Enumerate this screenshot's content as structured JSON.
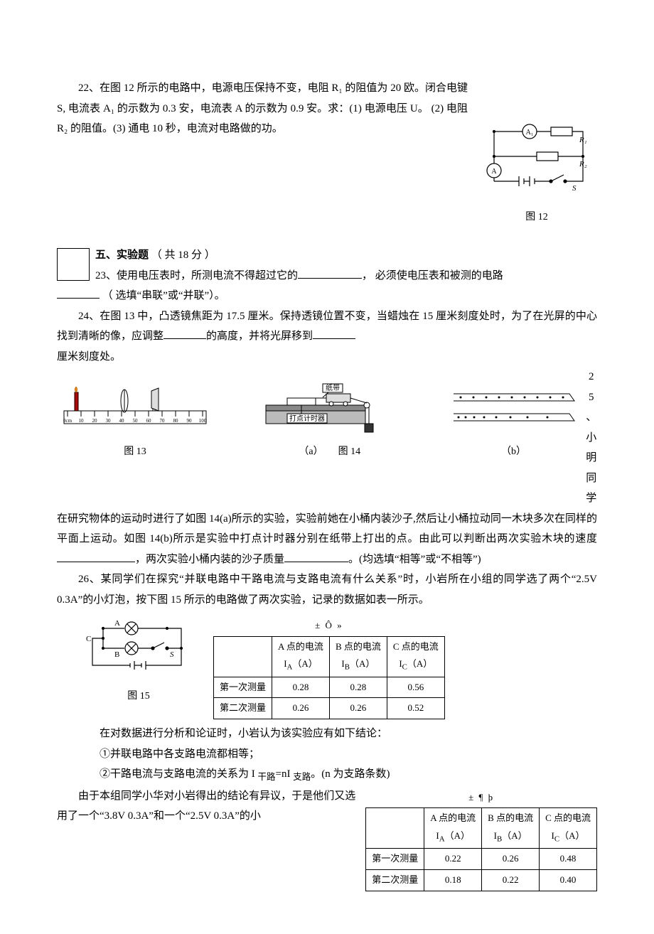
{
  "q22": {
    "text": "22、在图 12 所示的电路中，电源电压保持不变，电阻 R₁ 的阻值为 20 欧。闭合电键 S, 电流表 A₁ 的示数为 0.3 安，电流表 A 的示数为 0.9 安。求：(1) 电源电压 U。  (2) 电阻 R₂ 的阻值。(3) 通电 10 秒，电流对电路做的功。",
    "fig_caption": "图 12",
    "circuit": {
      "labels": {
        "A1": "A₁",
        "A": "A",
        "R1": "R₁",
        "R2": "R₂",
        "S": "S"
      },
      "stroke": "#000000"
    }
  },
  "section5": {
    "title": "五、实验题",
    "points": "（ 共  18  分 ）"
  },
  "q23": {
    "prefix": "23、使用电压表时，所测电流不得超过它的",
    "mid": "， 必须使电压表和被测的电路",
    "suffix": "（ 选填“串联”或“并联”）。"
  },
  "q24": {
    "l1a": "24、在图 13 中，凸透镜焦距为 17.5 厘米。保持透镜位置不变，当蜡烛在 15 厘米刻度处时，为了在光屏的中心找到清晰的像，应调整",
    "l1b": "的高度，并将光屏移到",
    "l2": "厘米刻度处。"
  },
  "fig13_caption": "图 13",
  "fig14": {
    "paper_label": "纸带",
    "timer_label": "打点计时器",
    "cap_a": "（a）",
    "cap_mid": "图 14",
    "cap_b": "（b）"
  },
  "ruler_ticks": [
    "0cm",
    "10",
    "20",
    "30",
    "40",
    "50",
    "60",
    "70",
    "80",
    "90",
    "100"
  ],
  "q25_side": [
    "2",
    "5",
    "、",
    "小",
    "明",
    "同",
    "学"
  ],
  "q25": {
    "l1": "在研究物体的运动时进行了如图 14(a)所示的实验，实验前她在小桶内装沙子,然后让小桶拉动同一木块多次在同样的平面上运动。如图 14(b)所示是实验中打点计时器分别在纸带上打出的点。由此可以判断出两次实验木块的速度",
    "l2": "，两次实验小桶内装的沙子质量",
    "l3": "。(均选填“相等”或“不相等”)"
  },
  "q26": {
    "intro": "26、某同学们在探究“并联电路中干路电流与支路电流有什么关系”时，小岩所在小组的同学选了两个“2.5V 0.3A”的小灯泡，按下图 15 所示的电路做了两次实验，记录的数据如表一所示。",
    "fig_caption": "图 15",
    "circuit_labels": {
      "A": "A",
      "B": "B",
      "C": "C",
      "S": "S"
    },
    "analysis_lead": "在对数据进行分析和论证时，小岩认为该实验应有如下结论：",
    "c1": "①并联电路中各支路电流都相等；",
    "c2_a": "②干路电流与支路电流的关系为 I ",
    "c2_sub1": "干路",
    "c2_b": "=nI ",
    "c2_sub2": "支路",
    "c2_c": "。(n 为支路条数)",
    "cont": "由于本组同学小华对小岩得出的结论有异议，于是他们又选用了一个“3.8V 0.3A”和一个“2.5V 0.3A”的小"
  },
  "table1": {
    "title": "± Ô »",
    "headers": [
      "",
      "A 点的电流\nI_A（A）",
      "B 点的电流\nI_B（A）",
      "C 点的电流\nI_C（A）"
    ],
    "rows": [
      [
        "第一次测量",
        "0.28",
        "0.28",
        "0.56"
      ],
      [
        "第二次测量",
        "0.26",
        "0.26",
        "0.52"
      ]
    ]
  },
  "table2": {
    "title": "± ¶ þ",
    "headers": [
      "",
      "A 点的电流\nI_A（A）",
      "B 点的电流\nI_B（A）",
      "C 点的电流\nI_C（A）"
    ],
    "rows": [
      [
        "第一次测量",
        "0.22",
        "0.26",
        "0.48"
      ],
      [
        "第二次测量",
        "0.18",
        "0.22",
        "0.40"
      ]
    ]
  }
}
